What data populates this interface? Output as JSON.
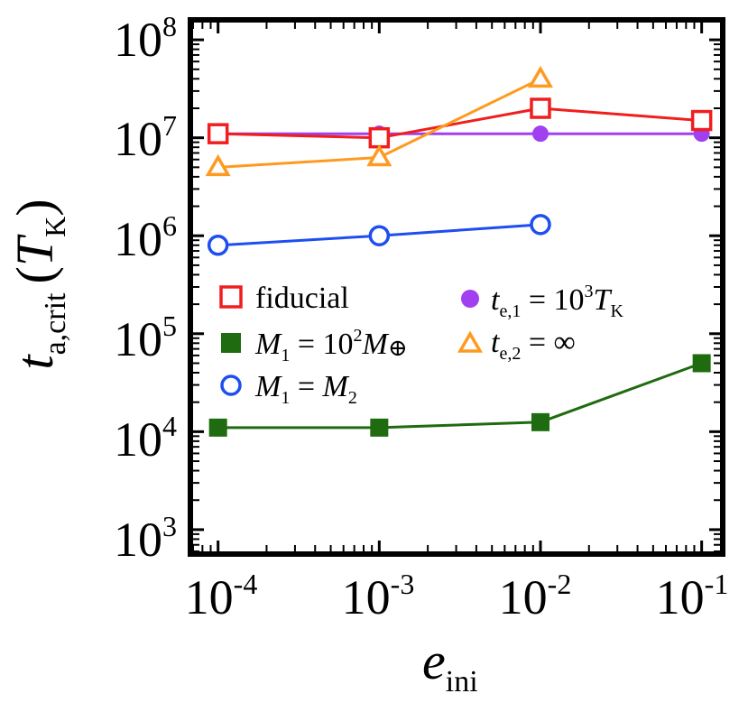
{
  "chart_data": {
    "type": "line",
    "xscale": "log",
    "yscale": "log",
    "xlim": [
      7e-05,
      0.13
    ],
    "ylim": [
      600,
      150000000
    ],
    "x_ticks": [
      {
        "value": 0.0001,
        "base": "10",
        "exp": "-4"
      },
      {
        "value": 0.001,
        "base": "10",
        "exp": "-3"
      },
      {
        "value": 0.01,
        "base": "10",
        "exp": "-2"
      },
      {
        "value": 0.1,
        "base": "10",
        "exp": "-1"
      }
    ],
    "y_ticks": [
      {
        "value": 1000,
        "base": "10",
        "exp": "3"
      },
      {
        "value": 10000,
        "base": "10",
        "exp": "4"
      },
      {
        "value": 100000,
        "base": "10",
        "exp": "5"
      },
      {
        "value": 1000000,
        "base": "10",
        "exp": "6"
      },
      {
        "value": 10000000,
        "base": "10",
        "exp": "7"
      },
      {
        "value": 100000000,
        "base": "10",
        "exp": "8"
      }
    ],
    "xlabel": {
      "main": "e",
      "sub": "ini"
    },
    "ylabel": {
      "main": "t",
      "sub": "a,crit",
      "paren_open": "(",
      "unit": "T",
      "unit_sub": "K",
      "paren_close": ")"
    },
    "series": [
      {
        "key": "purple",
        "color": "#a040f0",
        "marker": "filled-circle",
        "linewidth": 3,
        "x": [
          0.0001,
          0.001,
          0.01,
          0.1
        ],
        "y": [
          11000000,
          11000000,
          11000000,
          11000000
        ]
      },
      {
        "key": "red",
        "color": "#f01e1e",
        "marker": "open-square",
        "linewidth": 3,
        "x": [
          0.0001,
          0.001,
          0.01,
          0.1
        ],
        "y": [
          11000000,
          10000000,
          20000000,
          15000000
        ]
      },
      {
        "key": "orange",
        "color": "#ff9a20",
        "marker": "open-triangle",
        "linewidth": 3,
        "x": [
          0.0001,
          0.001,
          0.01
        ],
        "y": [
          5000000,
          6300000,
          40000000
        ]
      },
      {
        "key": "blue",
        "color": "#1e4ef0",
        "marker": "open-circle",
        "linewidth": 3,
        "x": [
          0.0001,
          0.001,
          0.01
        ],
        "y": [
          800000,
          1000000,
          1300000
        ]
      },
      {
        "key": "green",
        "color": "#1e6b10",
        "marker": "filled-square",
        "linewidth": 3,
        "x": [
          0.0001,
          0.001,
          0.01,
          0.1
        ],
        "y": [
          11000,
          11000,
          12500,
          50000
        ]
      }
    ],
    "legend": {
      "placement": "center",
      "entries": {
        "red": {
          "text": "fiducial"
        },
        "green": {
          "lhs": "M",
          "lhs_sub": "1",
          "eq": " = 10",
          "sup": "2",
          "rhs": "M",
          "rhs_sub": "⊕"
        },
        "blue": {
          "lhs": "M",
          "lhs_sub": "1",
          "eq": " = ",
          "rhs": "M",
          "rhs_sub": "2"
        },
        "purple": {
          "lhs": "t",
          "lhs_sub": "e,1",
          "eq": " = 10",
          "sup": "3",
          "rhs": "T",
          "rhs_sub": "K"
        },
        "orange": {
          "lhs": "t",
          "lhs_sub": "e,2",
          "eq": " = ∞"
        }
      }
    }
  }
}
